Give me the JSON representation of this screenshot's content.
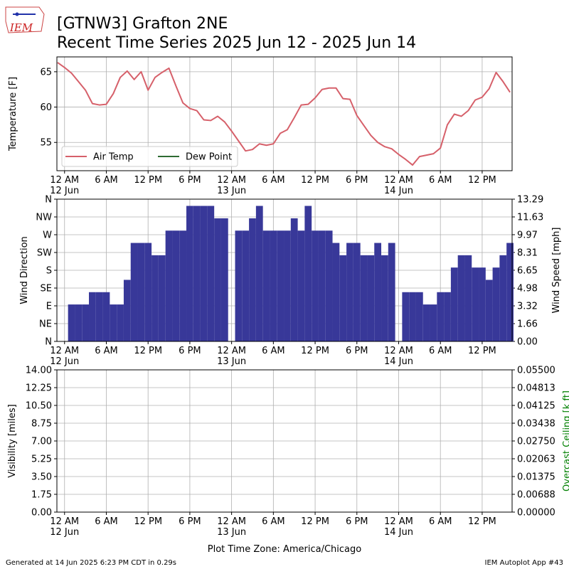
{
  "header": {
    "title": "[GTNW3] Grafton 2NE",
    "subtitle": "Recent Time Series 2025 Jun 12 - 2025 Jun 14",
    "logo_text": "IEM"
  },
  "footer": {
    "left": "Generated at 14 Jun 2025 6:23 PM CDT in 0.29s",
    "right": "IEM Autoplot App #43"
  },
  "chart_data": [
    {
      "type": "line",
      "ylabel": "Temperature [F]",
      "grid": true,
      "legend": "lower left",
      "xlim": [
        -1.1,
        64.3
      ],
      "ylim": [
        51,
        67.1
      ],
      "yticks": [
        55,
        60,
        65
      ],
      "xticks": [
        {
          "value": 0,
          "label": "12 AM\n12 Jun"
        },
        {
          "value": 6,
          "label": "6 AM"
        },
        {
          "value": 12,
          "label": "12 PM"
        },
        {
          "value": 18,
          "label": "6 PM"
        },
        {
          "value": 24,
          "label": "12 AM\n13 Jun"
        },
        {
          "value": 30,
          "label": "6 AM"
        },
        {
          "value": 36,
          "label": "12 PM"
        },
        {
          "value": 42,
          "label": "6 PM"
        },
        {
          "value": 48,
          "label": "12 AM\n14 Jun"
        },
        {
          "value": 54,
          "label": "6 AM"
        },
        {
          "value": 60,
          "label": "12 PM"
        }
      ],
      "x": [
        -1,
        0,
        1,
        2,
        3,
        4,
        5,
        6,
        7,
        8,
        9,
        10,
        11,
        12,
        13,
        14,
        15,
        16,
        17,
        18,
        19,
        20,
        21,
        22,
        23,
        24,
        25,
        26,
        27,
        28,
        29,
        30,
        31,
        32,
        33,
        34,
        35,
        36,
        37,
        38,
        39,
        40,
        41,
        42,
        43,
        44,
        45,
        46,
        47,
        48,
        49,
        50,
        51,
        52,
        53,
        54,
        55,
        56,
        57,
        58,
        59,
        60,
        61,
        62,
        63,
        64
      ],
      "series": [
        {
          "name": "Air Temp",
          "color": "#d6606a",
          "values": [
            66.3,
            65.6,
            64.8,
            63.6,
            62.4,
            60.5,
            60.3,
            60.4,
            61.9,
            64.2,
            65.1,
            63.9,
            65.0,
            62.4,
            64.2,
            64.9,
            65.5,
            63.0,
            60.6,
            59.8,
            59.5,
            58.2,
            58.1,
            58.7,
            57.9,
            56.6,
            55.2,
            53.8,
            54.0,
            54.8,
            54.6,
            54.8,
            56.3,
            56.8,
            58.5,
            60.3,
            60.4,
            61.3,
            62.5,
            62.7,
            62.7,
            61.2,
            61.1,
            58.8,
            57.4,
            56.0,
            55.0,
            54.4,
            54.1,
            53.3,
            52.6,
            51.8,
            53.0,
            53.2,
            53.4,
            54.2,
            57.5,
            59.0,
            58.7,
            59.5,
            61.0,
            61.4,
            62.6,
            64.9,
            63.6,
            62.1
          ]
        },
        {
          "name": "Dew Point",
          "color": "#2e6b33",
          "values": [
            null,
            null,
            null,
            null,
            null,
            null,
            null,
            null,
            null,
            null,
            null,
            null,
            null,
            null,
            null,
            null,
            null,
            null,
            null,
            null,
            null,
            null,
            null,
            null,
            null,
            null,
            null,
            null,
            null,
            null,
            null,
            null,
            null,
            null,
            null,
            null,
            null,
            null,
            null,
            null,
            null,
            null,
            null,
            null,
            null,
            null,
            null,
            null,
            null,
            null,
            null,
            null,
            null,
            null,
            null,
            null,
            null,
            null,
            null,
            null,
            null,
            null,
            null,
            null,
            null,
            null
          ]
        }
      ]
    },
    {
      "type": "bar",
      "ylabel": "Wind Direction",
      "y2label": "Wind Speed [mph]",
      "grid": true,
      "xlim": [
        -1.1,
        64.3
      ],
      "ylim": [
        0,
        360
      ],
      "y2lim": [
        0,
        13.29
      ],
      "yticks": [
        {
          "value": 0,
          "label": "N"
        },
        {
          "value": 45,
          "label": "NE"
        },
        {
          "value": 90,
          "label": "E"
        },
        {
          "value": 135,
          "label": "SE"
        },
        {
          "value": 180,
          "label": "S"
        },
        {
          "value": 225,
          "label": "SW"
        },
        {
          "value": 270,
          "label": "W"
        },
        {
          "value": 315,
          "label": "NW"
        },
        {
          "value": 360,
          "label": "N"
        }
      ],
      "y2ticks": [
        {
          "value": 0,
          "label": "0.00"
        },
        1.66,
        3.32,
        4.98,
        6.65,
        8.31,
        9.97,
        11.63,
        13.29
      ],
      "xticks": [
        {
          "value": 0,
          "label": "12 AM\n12 Jun"
        },
        {
          "value": 6,
          "label": "6 AM"
        },
        {
          "value": 12,
          "label": "12 PM"
        },
        {
          "value": 18,
          "label": "6 PM"
        },
        {
          "value": 24,
          "label": "12 AM\n13 Jun"
        },
        {
          "value": 30,
          "label": "6 AM"
        },
        {
          "value": 36,
          "label": "12 PM"
        },
        {
          "value": 42,
          "label": "6 PM"
        },
        {
          "value": 48,
          "label": "12 AM\n14 Jun"
        },
        {
          "value": 54,
          "label": "6 AM"
        },
        {
          "value": 60,
          "label": "12 PM"
        }
      ],
      "x": [
        0,
        1,
        2,
        3,
        4,
        5,
        6,
        7,
        8,
        9,
        10,
        11,
        12,
        13,
        14,
        15,
        16,
        17,
        18,
        19,
        20,
        21,
        22,
        23,
        24,
        25,
        26,
        27,
        28,
        29,
        30,
        31,
        32,
        33,
        34,
        35,
        36,
        37,
        38,
        39,
        40,
        41,
        42,
        43,
        44,
        45,
        46,
        47,
        48,
        49,
        50,
        51,
        52,
        53,
        54,
        55,
        56,
        57,
        58,
        59,
        60,
        61,
        62,
        63,
        64
      ],
      "series": [
        {
          "color": "#383899",
          "axis": "y2",
          "values": [
            null,
            3.45,
            3.45,
            3.45,
            4.6,
            4.6,
            4.6,
            3.45,
            3.45,
            5.75,
            9.2,
            9.2,
            9.2,
            8.05,
            8.05,
            10.35,
            10.35,
            10.35,
            12.66,
            12.66,
            12.66,
            12.66,
            11.5,
            11.5,
            null,
            10.35,
            10.35,
            11.5,
            12.66,
            10.35,
            10.35,
            10.35,
            10.35,
            11.5,
            10.35,
            12.66,
            10.35,
            10.35,
            10.35,
            9.2,
            8.05,
            9.2,
            9.2,
            8.05,
            8.05,
            9.2,
            8.05,
            9.2,
            null,
            4.6,
            4.6,
            4.6,
            3.45,
            3.45,
            4.6,
            4.6,
            6.9,
            8.05,
            8.05,
            6.9,
            6.9,
            5.75,
            6.9,
            8.05,
            9.2
          ]
        }
      ]
    },
    {
      "type": "line",
      "ylabel": "Visibility [miles]",
      "y2label": "Overcast Ceiling [k ft]",
      "y2color": "#008000",
      "xlabel": "Plot Time Zone: America/Chicago",
      "grid": true,
      "xlim": [
        -1.1,
        64.3
      ],
      "ylim": [
        0,
        14
      ],
      "y2lim": [
        0,
        0.055
      ],
      "yticks": [
        {
          "value": 0,
          "label": "0.00"
        },
        1.75,
        {
          "value": 3.5,
          "label": "3.50"
        },
        5.25,
        {
          "value": 7,
          "label": "7.00"
        },
        8.75,
        {
          "value": 10.5,
          "label": "10.50"
        },
        12.25,
        {
          "value": 14,
          "label": "14.00"
        }
      ],
      "y2ticks": [
        {
          "value": 0,
          "label": "0.00000"
        },
        {
          "value": 0.006875,
          "label": "0.00688"
        },
        {
          "value": 0.01375,
          "label": "0.01375"
        },
        {
          "value": 0.020625,
          "label": "0.02063"
        },
        {
          "value": 0.0275,
          "label": "0.02750"
        },
        {
          "value": 0.034375,
          "label": "0.03438"
        },
        {
          "value": 0.04125,
          "label": "0.04125"
        },
        {
          "value": 0.048125,
          "label": "0.04813"
        },
        {
          "value": 0.055,
          "label": "0.05500"
        }
      ],
      "xticks": [
        {
          "value": 0,
          "label": "12 AM\n12 Jun"
        },
        {
          "value": 6,
          "label": "6 AM"
        },
        {
          "value": 12,
          "label": "12 PM"
        },
        {
          "value": 18,
          "label": "6 PM"
        },
        {
          "value": 24,
          "label": "12 AM\n13 Jun"
        },
        {
          "value": 30,
          "label": "6 AM"
        },
        {
          "value": 36,
          "label": "12 PM"
        },
        {
          "value": 42,
          "label": "6 PM"
        },
        {
          "value": 48,
          "label": "12 AM\n14 Jun"
        },
        {
          "value": 54,
          "label": "6 AM"
        },
        {
          "value": 60,
          "label": "12 PM"
        }
      ]
    }
  ]
}
